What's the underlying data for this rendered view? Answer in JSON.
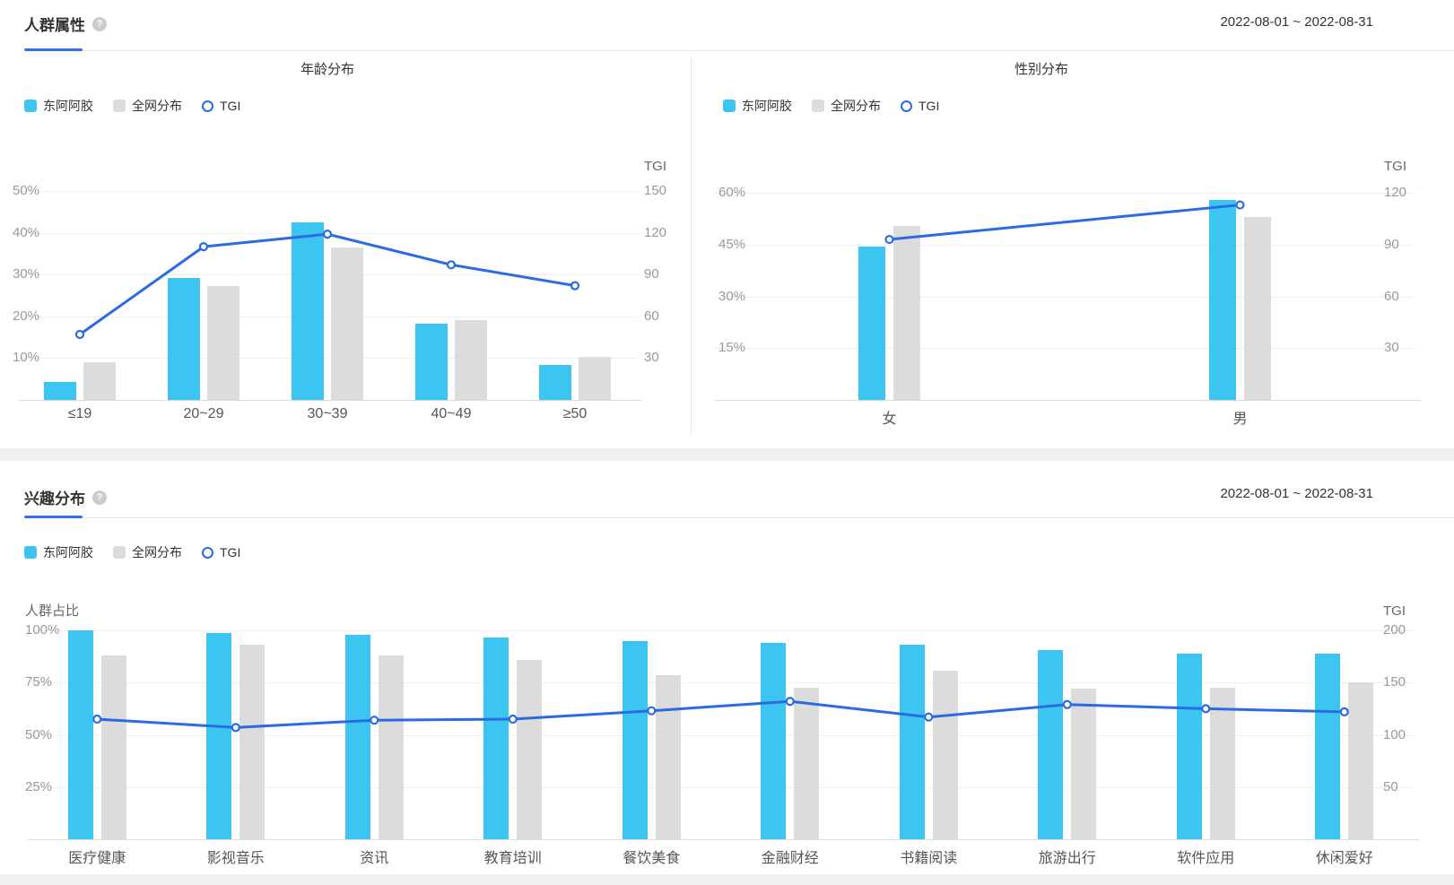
{
  "icons": {
    "help": "?"
  },
  "colors": {
    "brand_bar": "#3DC5F2",
    "network_bar": "#DCDCDC",
    "tgi_line": "#2A6BE2",
    "tab_active": "#2D6FEF"
  },
  "sections": [
    {
      "title": "人群属性",
      "date_range": "2022-08-01 ~ 2022-08-31"
    },
    {
      "title": "兴趣分布",
      "date_range": "2022-08-01 ~ 2022-08-31"
    }
  ],
  "chart_data": [
    {
      "id": "age",
      "type": "bar+line",
      "title": "年龄分布",
      "categories": [
        "≤19",
        "20~29",
        "30~39",
        "40~49",
        "≥50"
      ],
      "series": [
        {
          "name": "东阿阿胶",
          "type": "bar",
          "unit": "%",
          "values": [
            4.2,
            29.2,
            42.5,
            18.2,
            8.4
          ]
        },
        {
          "name": "全网分布",
          "type": "bar",
          "unit": "%",
          "values": [
            9.1,
            27.2,
            36.4,
            19.2,
            10.4
          ]
        },
        {
          "name": "TGI",
          "type": "line",
          "axis": "right",
          "values": [
            47,
            110,
            119,
            97,
            82
          ]
        }
      ],
      "left_axis": {
        "unit": "%",
        "ticks": [
          10,
          20,
          30,
          40,
          50
        ],
        "max": 54.5
      },
      "right_axis": {
        "label": "TGI",
        "ticks": [
          30,
          60,
          90,
          120,
          150
        ],
        "max": 163.5
      },
      "grid": true,
      "legend_position": "top-left"
    },
    {
      "id": "gender",
      "type": "bar+line",
      "title": "性别分布",
      "categories": [
        "女",
        "男"
      ],
      "series": [
        {
          "name": "东阿阿胶",
          "type": "bar",
          "unit": "%",
          "values": [
            44.5,
            58
          ]
        },
        {
          "name": "全网分布",
          "type": "bar",
          "unit": "%",
          "values": [
            50.5,
            53
          ]
        },
        {
          "name": "TGI",
          "type": "line",
          "axis": "right",
          "values": [
            93,
            113
          ]
        }
      ],
      "left_axis": {
        "unit": "%",
        "ticks": [
          15,
          30,
          45,
          60
        ],
        "max": 66
      },
      "right_axis": {
        "label": "TGI",
        "ticks": [
          30,
          60,
          90,
          120
        ],
        "max": 132
      },
      "grid": true,
      "legend_position": "top-left"
    },
    {
      "id": "interest",
      "type": "bar+line",
      "title": "兴趣分布",
      "categories": [
        "医疗健康",
        "影视音乐",
        "资讯",
        "教育培训",
        "餐饮美食",
        "金融财经",
        "书籍阅读",
        "旅游出行",
        "软件应用",
        "休闲爱好"
      ],
      "series": [
        {
          "name": "东阿阿胶",
          "type": "bar",
          "unit": "%",
          "values": [
            100,
            98.7,
            98,
            96.6,
            94.7,
            93.9,
            93,
            90.7,
            88.7,
            89
          ]
        },
        {
          "name": "全网分布",
          "type": "bar",
          "unit": "%",
          "values": [
            88,
            93.3,
            88,
            86,
            78.6,
            72.6,
            80.7,
            72,
            72.6,
            75
          ]
        },
        {
          "name": "TGI",
          "type": "line",
          "axis": "right",
          "values": [
            115,
            107,
            114,
            115,
            123,
            132,
            117,
            129,
            125,
            122
          ]
        }
      ],
      "left_axis": {
        "label": "人群占比",
        "unit": "%",
        "ticks": [
          25,
          50,
          75,
          100
        ],
        "max": 100
      },
      "right_axis": {
        "label": "TGI",
        "ticks": [
          50,
          100,
          150,
          200
        ],
        "max": 200
      },
      "grid": true,
      "legend_position": "top-left"
    }
  ]
}
